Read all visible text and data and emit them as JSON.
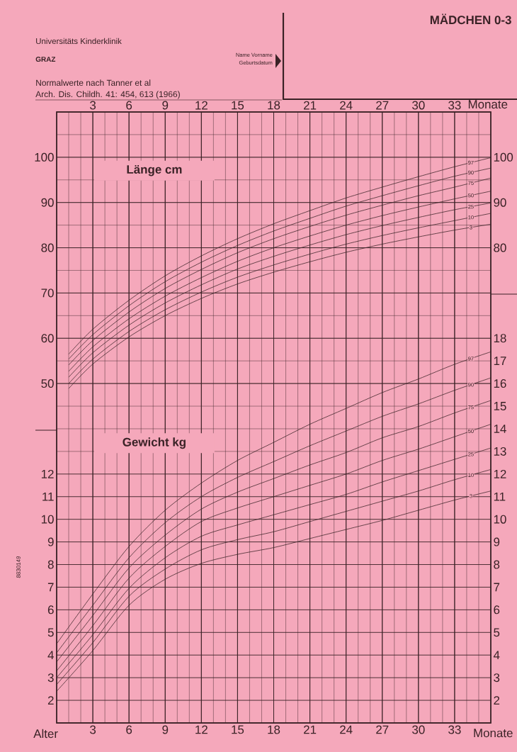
{
  "chart_data": [
    {
      "type": "line",
      "title": "MÄDCHEN 0-3",
      "ylabel": "Länge cm",
      "xlabel": "Monate",
      "annotations": [
        "Universitäts Kinderklinik",
        "GRAZ",
        "Normalwerte nach Tanner et al",
        "Arch. Dis. Childh. 41: 454, 613 (1966)",
        "Name Vorname",
        "Geburtsdatum"
      ],
      "x": [
        1,
        3,
        6,
        9,
        12,
        15,
        18,
        21,
        24,
        27,
        30,
        33,
        36
      ],
      "xlim": [
        0,
        36
      ],
      "xticks": [
        3,
        6,
        9,
        12,
        15,
        18,
        21,
        24,
        27,
        30,
        33
      ],
      "ylim": [
        -25,
        110
      ],
      "yticks": [
        50,
        60,
        70,
        80,
        90,
        100
      ],
      "y2lim": [
        -25,
        110
      ],
      "y2ticks": [
        80,
        90,
        100
      ],
      "grid": true,
      "series": [
        {
          "name": "97",
          "color": "#3a2226",
          "values": [
            56.5,
            62.0,
            68.4,
            73.8,
            78.2,
            82.0,
            85.3,
            88.2,
            91.0,
            93.4,
            95.7,
            97.9,
            99.9
          ]
        },
        {
          "name": "90",
          "color": "#3a2226",
          "values": [
            55.4,
            60.8,
            67.2,
            72.5,
            76.8,
            80.5,
            83.7,
            86.5,
            89.2,
            91.5,
            93.7,
            95.8,
            97.6
          ]
        },
        {
          "name": "75",
          "color": "#3a2226",
          "values": [
            54.1,
            59.5,
            65.8,
            71.0,
            75.2,
            78.9,
            82.0,
            84.7,
            87.2,
            89.4,
            91.5,
            93.4,
            95.4
          ]
        },
        {
          "name": "50",
          "color": "#3a2226",
          "values": [
            52.7,
            58.1,
            64.3,
            69.3,
            73.4,
            77.0,
            80.0,
            82.6,
            85.0,
            87.1,
            89.0,
            90.8,
            92.5
          ]
        },
        {
          "name": "25",
          "color": "#3a2226",
          "values": [
            51.4,
            56.8,
            62.9,
            67.8,
            71.8,
            75.3,
            78.1,
            80.6,
            82.9,
            84.9,
            86.7,
            88.4,
            89.9
          ]
        },
        {
          "name": "10",
          "color": "#3a2226",
          "values": [
            50.0,
            55.4,
            61.5,
            66.3,
            70.2,
            73.5,
            76.2,
            78.6,
            80.8,
            82.7,
            84.4,
            86.0,
            87.6
          ]
        },
        {
          "name": "3",
          "color": "#3a2226",
          "values": [
            48.9,
            54.3,
            60.3,
            65.0,
            68.8,
            72.0,
            74.6,
            76.9,
            79.0,
            80.8,
            82.4,
            83.9,
            85.2
          ]
        }
      ]
    },
    {
      "type": "line",
      "ylabel": "Gewicht kg",
      "xlabel": "Monate",
      "annotations": [
        "Alter",
        "8830149"
      ],
      "x": [
        0,
        3,
        6,
        9,
        12,
        15,
        18,
        21,
        24,
        27,
        30,
        33,
        36
      ],
      "xlim": [
        0,
        36
      ],
      "xticks": [
        {
          "value": 1,
          "label": null
        },
        {
          "value": 2,
          "label": null
        },
        3,
        {
          "value": 4,
          "label": null
        },
        {
          "value": 5,
          "label": null
        },
        6,
        {
          "value": 7,
          "label": null
        },
        {
          "value": 8,
          "label": null
        },
        9,
        {
          "value": 10,
          "label": null
        },
        {
          "value": 11,
          "label": null
        },
        12,
        {
          "value": 13,
          "label": null
        },
        {
          "value": 14,
          "label": null
        },
        15,
        {
          "value": 16,
          "label": null
        },
        {
          "value": 17,
          "label": null
        },
        18,
        {
          "value": 19,
          "label": null
        },
        {
          "value": 20,
          "label": null
        },
        21,
        {
          "value": 22,
          "label": null
        },
        {
          "value": 23,
          "label": null
        },
        24,
        {
          "value": 25,
          "label": null
        },
        {
          "value": 26,
          "label": null
        },
        27,
        {
          "value": 28,
          "label": null
        },
        {
          "value": 29,
          "label": null
        },
        30,
        {
          "value": 31,
          "label": null
        },
        {
          "value": 32,
          "label": null
        },
        33,
        {
          "value": 34,
          "label": null
        },
        {
          "value": 35,
          "label": null
        }
      ],
      "ylim": [
        1,
        28
      ],
      "yticks": [
        2,
        3,
        4,
        5,
        6,
        7,
        8,
        9,
        10,
        11,
        12,
        {
          "value": 13,
          "label": null
        },
        {
          "value": 14,
          "label": null
        },
        {
          "value": 15,
          "label": null
        },
        {
          "value": 16,
          "label": null
        },
        {
          "value": 17,
          "label": null
        },
        {
          "value": 18,
          "label": null
        },
        {
          "value": 19,
          "label": null
        },
        {
          "value": 20,
          "label": null
        },
        {
          "value": 21,
          "label": null
        },
        {
          "value": 22,
          "label": null
        },
        {
          "value": 23,
          "label": null
        },
        {
          "value": 24,
          "label": null
        },
        {
          "value": 25,
          "label": null
        },
        {
          "value": 26,
          "label": null
        },
        {
          "value": 27,
          "label": null
        }
      ],
      "y2lim": [
        1,
        28
      ],
      "y2ticks": [
        2,
        3,
        4,
        5,
        6,
        7,
        8,
        9,
        10,
        11,
        12,
        13,
        14,
        15,
        16,
        17,
        18
      ],
      "grid": true,
      "series": [
        {
          "name": "97",
          "color": "#3a2226",
          "values": [
            4.5,
            6.7,
            8.8,
            10.4,
            11.6,
            12.6,
            13.4,
            14.2,
            14.9,
            15.6,
            16.2,
            16.85,
            17.4
          ]
        },
        {
          "name": "90",
          "color": "#3a2226",
          "values": [
            4.1,
            6.2,
            8.3,
            9.85,
            11.0,
            11.85,
            12.55,
            13.25,
            13.9,
            14.55,
            15.1,
            15.7,
            16.25
          ]
        },
        {
          "name": "75",
          "color": "#3a2226",
          "values": [
            3.7,
            5.75,
            7.85,
            9.3,
            10.45,
            11.2,
            11.8,
            12.4,
            12.95,
            13.6,
            14.1,
            14.7,
            15.25
          ]
        },
        {
          "name": "50",
          "color": "#3a2226",
          "values": [
            3.3,
            5.3,
            7.4,
            8.8,
            9.9,
            10.5,
            11.0,
            11.5,
            12.0,
            12.6,
            13.1,
            13.65,
            14.2
          ]
        },
        {
          "name": "25",
          "color": "#3a2226",
          "values": [
            3.0,
            4.9,
            6.95,
            8.3,
            9.25,
            9.75,
            10.2,
            10.65,
            11.1,
            11.65,
            12.15,
            12.65,
            13.15
          ]
        },
        {
          "name": "10",
          "color": "#3a2226",
          "values": [
            2.7,
            4.55,
            6.6,
            7.8,
            8.65,
            9.1,
            9.45,
            9.9,
            10.35,
            10.8,
            11.25,
            11.75,
            12.2
          ]
        },
        {
          "name": "3",
          "color": "#3a2226",
          "values": [
            2.4,
            4.2,
            6.2,
            7.35,
            8.05,
            8.45,
            8.75,
            9.15,
            9.55,
            9.95,
            10.4,
            10.85,
            11.25
          ]
        }
      ]
    }
  ]
}
